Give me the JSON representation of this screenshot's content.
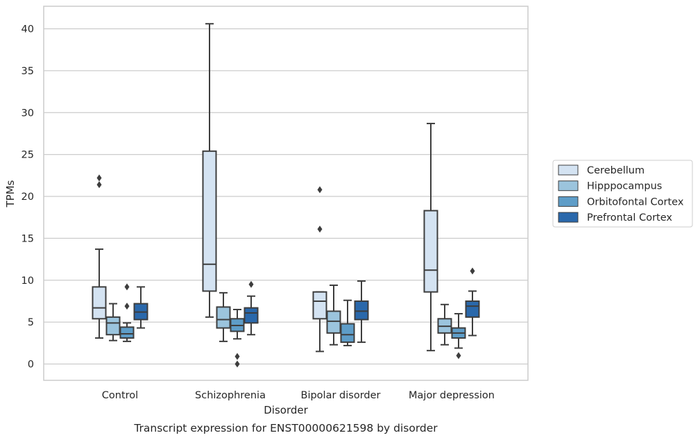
{
  "chart_data": {
    "type": "boxplot",
    "xlabel": "Disorder",
    "ylabel": "TPMs",
    "caption": "Transcript expression for ENST00000621598 by disorder",
    "ylim": [
      -2,
      42.5
    ],
    "yticks": [
      0,
      5,
      10,
      15,
      20,
      25,
      30,
      35,
      40
    ],
    "grid": true,
    "legend_position": "right",
    "categories": [
      "Control",
      "Schizophrenia",
      "Bipolar disorder",
      "Major depression"
    ],
    "series": [
      {
        "name": "Cerebellum",
        "color": "#d4e3f2",
        "boxes": [
          {
            "whisker_low": 3.1,
            "q1": 5.4,
            "median": 6.7,
            "q3": 9.2,
            "whisker_high": 13.7,
            "outliers": [
              21.4,
              22.2
            ]
          },
          {
            "whisker_low": 5.6,
            "q1": 8.7,
            "median": 11.9,
            "q3": 25.4,
            "whisker_high": 40.6,
            "outliers": []
          },
          {
            "whisker_low": 1.5,
            "q1": 5.4,
            "median": 7.5,
            "q3": 8.6,
            "whisker_high": 8.6,
            "outliers": [
              16.1,
              20.8
            ]
          },
          {
            "whisker_low": 1.6,
            "q1": 8.6,
            "median": 11.2,
            "q3": 18.3,
            "whisker_high": 28.7,
            "outliers": []
          }
        ]
      },
      {
        "name": "Hipppocampus",
        "color": "#9bc4dd",
        "boxes": [
          {
            "whisker_low": 2.8,
            "q1": 3.5,
            "median": 4.9,
            "q3": 5.6,
            "whisker_high": 7.2,
            "outliers": []
          },
          {
            "whisker_low": 2.7,
            "q1": 4.3,
            "median": 5.3,
            "q3": 6.8,
            "whisker_high": 8.5,
            "outliers": []
          },
          {
            "whisker_low": 2.3,
            "q1": 3.7,
            "median": 5.1,
            "q3": 6.3,
            "whisker_high": 9.4,
            "outliers": []
          },
          {
            "whisker_low": 2.3,
            "q1": 3.7,
            "median": 4.5,
            "q3": 5.4,
            "whisker_high": 7.1,
            "outliers": []
          }
        ]
      },
      {
        "name": "Orbitofontal Cortex",
        "color": "#5e9dc8",
        "boxes": [
          {
            "whisker_low": 2.7,
            "q1": 3.1,
            "median": 3.6,
            "q3": 4.4,
            "whisker_high": 4.9,
            "outliers": [
              6.9,
              9.2
            ]
          },
          {
            "whisker_low": 3.0,
            "q1": 3.9,
            "median": 4.6,
            "q3": 5.4,
            "whisker_high": 6.5,
            "outliers": [
              0.0,
              0.9
            ]
          },
          {
            "whisker_low": 2.2,
            "q1": 2.6,
            "median": 3.5,
            "q3": 4.8,
            "whisker_high": 7.6,
            "outliers": []
          },
          {
            "whisker_low": 1.9,
            "q1": 3.1,
            "median": 3.7,
            "q3": 4.3,
            "whisker_high": 6.0,
            "outliers": [
              1.0
            ]
          }
        ]
      },
      {
        "name": "Prefrontal Cortex",
        "color": "#2a68ab",
        "boxes": [
          {
            "whisker_low": 4.3,
            "q1": 5.3,
            "median": 6.2,
            "q3": 7.2,
            "whisker_high": 9.2,
            "outliers": []
          },
          {
            "whisker_low": 3.5,
            "q1": 4.9,
            "median": 6.1,
            "q3": 6.7,
            "whisker_high": 8.1,
            "outliers": [
              9.5
            ]
          },
          {
            "whisker_low": 2.6,
            "q1": 5.3,
            "median": 6.3,
            "q3": 7.5,
            "whisker_high": 9.9,
            "outliers": []
          },
          {
            "whisker_low": 3.4,
            "q1": 5.6,
            "median": 6.9,
            "q3": 7.5,
            "whisker_high": 8.7,
            "outliers": [
              11.1
            ]
          }
        ]
      }
    ]
  }
}
